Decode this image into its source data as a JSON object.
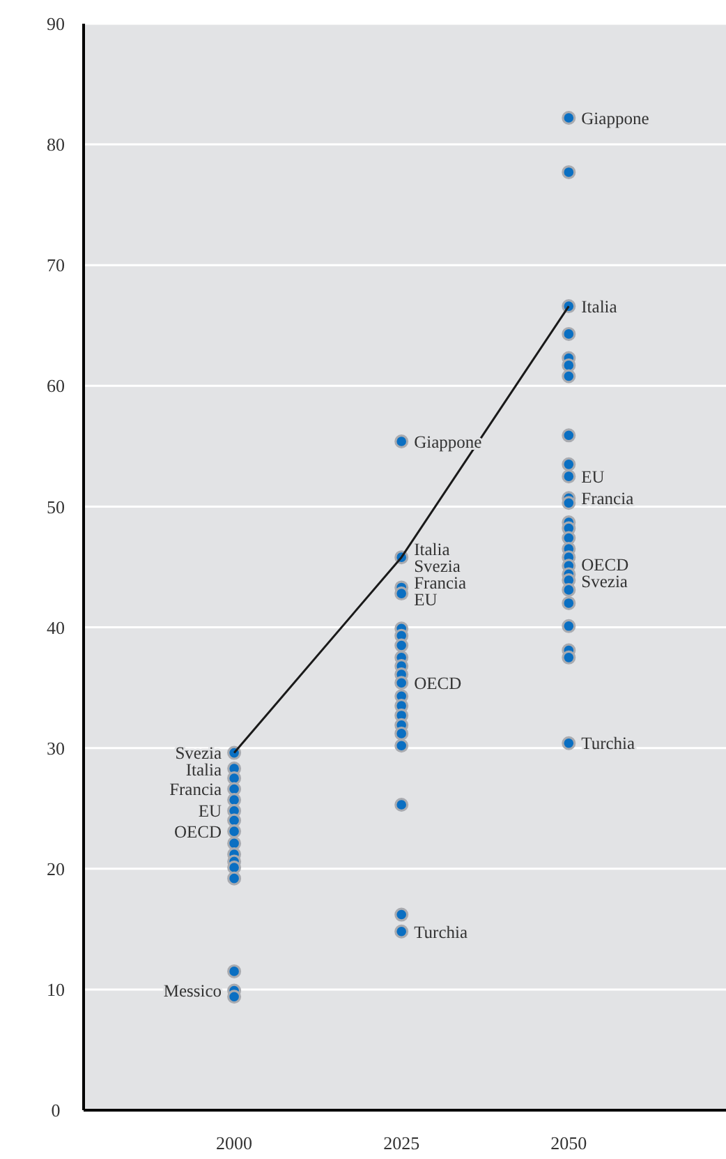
{
  "chart_data": {
    "type": "scatter",
    "xlim": [
      1977.5,
      2073.5
    ],
    "xticks": [
      2000,
      2025,
      2050
    ],
    "ylim": [
      0,
      90
    ],
    "yticks": [
      0,
      10,
      20,
      30,
      40,
      50,
      60,
      70,
      80,
      90
    ],
    "grid": "y",
    "marker": "circle",
    "series": [
      {
        "color": "#0a6fc2",
        "x": [
          2000,
          2000,
          2000,
          2000,
          2000,
          2000,
          2000,
          2000,
          2000,
          2000,
          2000,
          2000,
          2000,
          2000,
          2000,
          2000,
          2025,
          2025,
          2025,
          2025,
          2025,
          2025,
          2025,
          2025,
          2025,
          2025,
          2025,
          2025,
          2025,
          2025,
          2025,
          2025,
          2025,
          2025,
          2025,
          2025,
          2050,
          2050,
          2050,
          2050,
          2050,
          2050,
          2050,
          2050,
          2050,
          2050,
          2050,
          2050,
          2050,
          2050,
          2050,
          2050,
          2050,
          2050,
          2050,
          2050,
          2050,
          2050,
          2050,
          2050,
          2050,
          2050
        ],
        "values": [
          29.6,
          28.3,
          27.5,
          26.6,
          25.7,
          24.8,
          24.0,
          23.1,
          22.1,
          21.2,
          20.6,
          20.1,
          19.2,
          11.5,
          9.9,
          9.4,
          55.4,
          45.8,
          43.3,
          42.8,
          39.9,
          39.3,
          38.5,
          37.5,
          36.8,
          36.1,
          35.4,
          34.3,
          33.5,
          32.7,
          31.9,
          31.2,
          30.2,
          25.3,
          16.2,
          14.8,
          82.2,
          77.7,
          66.6,
          64.3,
          62.3,
          61.7,
          60.8,
          55.9,
          53.5,
          52.5,
          50.7,
          50.3,
          48.7,
          48.2,
          47.4,
          46.5,
          45.8,
          45.1,
          44.4,
          43.9,
          43.1,
          42.0,
          40.1,
          38.1,
          37.5,
          30.4
        ]
      },
      {
        "type": "line",
        "color": "#1a1a1a",
        "x": [
          2000,
          2025,
          2050
        ],
        "values": [
          29.6,
          45.8,
          66.6
        ],
        "marker": "none"
      }
    ],
    "annotations": [
      {
        "text": "Svezia",
        "x": 2000,
        "y": 29.6
      },
      {
        "text": "Italia",
        "x": 2000,
        "y": 28.3
      },
      {
        "text": "Francia",
        "x": 2000,
        "y": 26.6
      },
      {
        "text": "EU",
        "x": 2000,
        "y": 24.8
      },
      {
        "text": "OECD",
        "x": 2000,
        "y": 23.1
      },
      {
        "text": "Messico",
        "x": 2000,
        "y": 9.9
      },
      {
        "text": "Giappone",
        "x": 2025,
        "y": 55.4
      },
      {
        "text": "Italia",
        "x": 2025,
        "y": 45.8
      },
      {
        "text": "Svezia",
        "x": 2025,
        "y": 45.8
      },
      {
        "text": "Francia",
        "x": 2025,
        "y": 43.3
      },
      {
        "text": "EU",
        "x": 2025,
        "y": 42.8
      },
      {
        "text": "OECD",
        "x": 2025,
        "y": 35.4
      },
      {
        "text": "Turchia",
        "x": 2025,
        "y": 14.8
      },
      {
        "text": "Giappone",
        "x": 2050,
        "y": 82.2
      },
      {
        "text": "Italia",
        "x": 2050,
        "y": 66.6
      },
      {
        "text": "EU",
        "x": 2050,
        "y": 52.5
      },
      {
        "text": "Francia",
        "x": 2050,
        "y": 50.7
      },
      {
        "text": "OECD",
        "x": 2050,
        "y": 45.1
      },
      {
        "text": "Svezia",
        "x": 2050,
        "y": 43.9
      },
      {
        "text": "Turchia",
        "x": 2050,
        "y": 30.4
      }
    ]
  }
}
